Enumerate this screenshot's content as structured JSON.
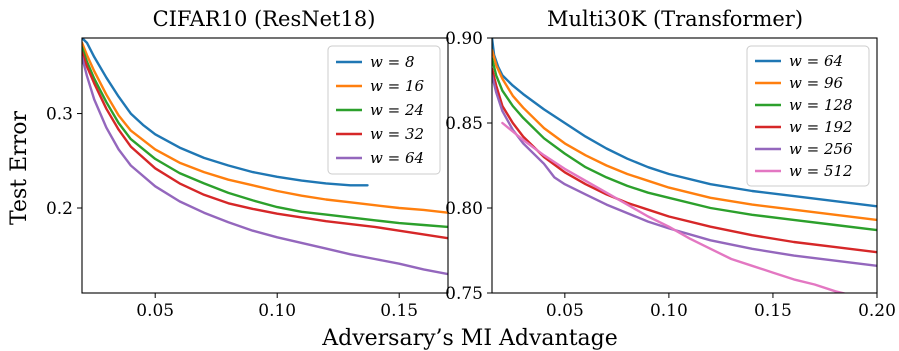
{
  "figure": {
    "shared_xlabel": "Adversary’s MI Advantage",
    "shared_ylabel": "Test Error"
  },
  "chart_data": [
    {
      "type": "line",
      "title": "CIFAR10 (ResNet18)",
      "xlabel": "",
      "ylabel": "Test Error",
      "xlim": [
        0.02,
        0.17
      ],
      "ylim": [
        0.11,
        0.38
      ],
      "xticks": [
        0.05,
        0.1,
        0.15
      ],
      "xtick_labels": [
        "0.05",
        "0.10",
        "0.15"
      ],
      "yticks": [
        0.2,
        0.3
      ],
      "ytick_labels": [
        "0.2",
        "0.3"
      ],
      "grid": false,
      "legend_position": "top-right",
      "series": [
        {
          "name": "w = 8",
          "label_var": "w",
          "label_val": "8",
          "color": "#1f77b4",
          "x": [
            0.02,
            0.022,
            0.025,
            0.03,
            0.035,
            0.04,
            0.045,
            0.05,
            0.06,
            0.07,
            0.08,
            0.09,
            0.1,
            0.11,
            0.12,
            0.13,
            0.137
          ],
          "y": [
            0.38,
            0.375,
            0.36,
            0.338,
            0.318,
            0.3,
            0.288,
            0.278,
            0.264,
            0.253,
            0.245,
            0.238,
            0.233,
            0.229,
            0.226,
            0.224,
            0.224
          ]
        },
        {
          "name": "w = 16",
          "label_var": "w",
          "label_val": "16",
          "color": "#ff7f0e",
          "x": [
            0.02,
            0.022,
            0.025,
            0.03,
            0.035,
            0.04,
            0.05,
            0.06,
            0.07,
            0.08,
            0.09,
            0.1,
            0.11,
            0.12,
            0.13,
            0.14,
            0.15,
            0.16,
            0.17
          ],
          "y": [
            0.375,
            0.362,
            0.345,
            0.32,
            0.298,
            0.282,
            0.262,
            0.248,
            0.238,
            0.23,
            0.224,
            0.218,
            0.213,
            0.209,
            0.206,
            0.203,
            0.2,
            0.198,
            0.195
          ]
        },
        {
          "name": "w = 24",
          "label_var": "w",
          "label_val": "24",
          "color": "#2ca02c",
          "x": [
            0.02,
            0.022,
            0.025,
            0.03,
            0.035,
            0.04,
            0.05,
            0.06,
            0.07,
            0.08,
            0.09,
            0.1,
            0.11,
            0.12,
            0.13,
            0.14,
            0.15,
            0.16,
            0.17
          ],
          "y": [
            0.37,
            0.355,
            0.337,
            0.312,
            0.29,
            0.273,
            0.252,
            0.237,
            0.226,
            0.216,
            0.208,
            0.201,
            0.196,
            0.193,
            0.19,
            0.187,
            0.184,
            0.182,
            0.18
          ]
        },
        {
          "name": "w = 32",
          "label_var": "w",
          "label_val": "32",
          "color": "#d62728",
          "x": [
            0.02,
            0.022,
            0.025,
            0.03,
            0.035,
            0.04,
            0.05,
            0.06,
            0.07,
            0.08,
            0.09,
            0.1,
            0.11,
            0.12,
            0.13,
            0.14,
            0.15,
            0.16,
            0.17
          ],
          "y": [
            0.365,
            0.35,
            0.332,
            0.305,
            0.283,
            0.265,
            0.242,
            0.226,
            0.214,
            0.205,
            0.199,
            0.194,
            0.19,
            0.186,
            0.183,
            0.18,
            0.176,
            0.172,
            0.168
          ]
        },
        {
          "name": "w = 64",
          "label_var": "w",
          "label_val": "64",
          "color": "#9467bd",
          "x": [
            0.02,
            0.022,
            0.025,
            0.03,
            0.035,
            0.04,
            0.05,
            0.06,
            0.07,
            0.08,
            0.09,
            0.1,
            0.11,
            0.12,
            0.13,
            0.14,
            0.15,
            0.16,
            0.17
          ],
          "y": [
            0.36,
            0.34,
            0.315,
            0.285,
            0.262,
            0.245,
            0.223,
            0.207,
            0.195,
            0.185,
            0.176,
            0.169,
            0.163,
            0.157,
            0.151,
            0.146,
            0.141,
            0.135,
            0.13
          ]
        }
      ]
    },
    {
      "type": "line",
      "title": "Multi30K (Transformer)",
      "xlabel": "",
      "ylabel": "",
      "xlim": [
        0.015,
        0.2
      ],
      "ylim": [
        0.75,
        0.9
      ],
      "xticks": [
        0.05,
        0.1,
        0.15,
        0.2
      ],
      "xtick_labels": [
        "0.05",
        "0.10",
        "0.15",
        "0.20"
      ],
      "yticks": [
        0.75,
        0.8,
        0.85,
        0.9
      ],
      "ytick_labels": [
        "0.75",
        "0.80",
        "0.85",
        "0.90"
      ],
      "grid": false,
      "legend_position": "top-right",
      "series": [
        {
          "name": "w = 64",
          "label_var": "w",
          "label_val": "64",
          "color": "#1f77b4",
          "x": [
            0.015,
            0.016,
            0.018,
            0.02,
            0.025,
            0.03,
            0.04,
            0.05,
            0.06,
            0.07,
            0.08,
            0.09,
            0.1,
            0.12,
            0.14,
            0.16,
            0.18,
            0.2
          ],
          "y": [
            0.9,
            0.89,
            0.883,
            0.878,
            0.872,
            0.867,
            0.858,
            0.85,
            0.842,
            0.835,
            0.829,
            0.824,
            0.82,
            0.814,
            0.81,
            0.807,
            0.804,
            0.801
          ]
        },
        {
          "name": "w = 96",
          "label_var": "w",
          "label_val": "96",
          "color": "#ff7f0e",
          "x": [
            0.015,
            0.017,
            0.02,
            0.025,
            0.03,
            0.04,
            0.05,
            0.06,
            0.07,
            0.08,
            0.09,
            0.1,
            0.12,
            0.14,
            0.16,
            0.18,
            0.2
          ],
          "y": [
            0.893,
            0.884,
            0.876,
            0.866,
            0.859,
            0.847,
            0.838,
            0.831,
            0.825,
            0.82,
            0.816,
            0.812,
            0.806,
            0.802,
            0.799,
            0.796,
            0.793
          ]
        },
        {
          "name": "w = 128",
          "label_var": "w",
          "label_val": "128",
          "color": "#2ca02c",
          "x": [
            0.015,
            0.017,
            0.02,
            0.025,
            0.03,
            0.04,
            0.05,
            0.06,
            0.07,
            0.08,
            0.09,
            0.1,
            0.12,
            0.14,
            0.16,
            0.18,
            0.2
          ],
          "y": [
            0.888,
            0.878,
            0.869,
            0.86,
            0.853,
            0.841,
            0.832,
            0.824,
            0.818,
            0.813,
            0.809,
            0.806,
            0.8,
            0.796,
            0.793,
            0.79,
            0.787
          ]
        },
        {
          "name": "w = 192",
          "label_var": "w",
          "label_val": "192",
          "color": "#d62728",
          "x": [
            0.015,
            0.017,
            0.02,
            0.025,
            0.03,
            0.04,
            0.05,
            0.06,
            0.07,
            0.08,
            0.09,
            0.1,
            0.12,
            0.14,
            0.16,
            0.18,
            0.2
          ],
          "y": [
            0.882,
            0.872,
            0.86,
            0.85,
            0.842,
            0.83,
            0.821,
            0.814,
            0.808,
            0.803,
            0.799,
            0.795,
            0.789,
            0.784,
            0.78,
            0.777,
            0.774
          ]
        },
        {
          "name": "w = 256",
          "label_var": "w",
          "label_val": "256",
          "color": "#9467bd",
          "x": [
            0.015,
            0.017,
            0.02,
            0.025,
            0.03,
            0.04,
            0.045,
            0.05,
            0.06,
            0.07,
            0.08,
            0.09,
            0.1,
            0.12,
            0.14,
            0.16,
            0.18,
            0.2
          ],
          "y": [
            0.878,
            0.868,
            0.857,
            0.846,
            0.838,
            0.826,
            0.818,
            0.814,
            0.808,
            0.802,
            0.797,
            0.792,
            0.788,
            0.781,
            0.776,
            0.772,
            0.769,
            0.766
          ]
        },
        {
          "name": "w = 512",
          "label_var": "w",
          "label_val": "512",
          "color": "#e377c2",
          "x": [
            0.02,
            0.03,
            0.04,
            0.05,
            0.06,
            0.07,
            0.08,
            0.09,
            0.1,
            0.11,
            0.12,
            0.13,
            0.14,
            0.15,
            0.16,
            0.17,
            0.18,
            0.19
          ],
          "y": [
            0.85,
            0.84,
            0.831,
            0.823,
            0.816,
            0.809,
            0.802,
            0.795,
            0.789,
            0.782,
            0.776,
            0.77,
            0.766,
            0.762,
            0.758,
            0.755,
            0.751,
            0.748
          ]
        }
      ]
    }
  ]
}
